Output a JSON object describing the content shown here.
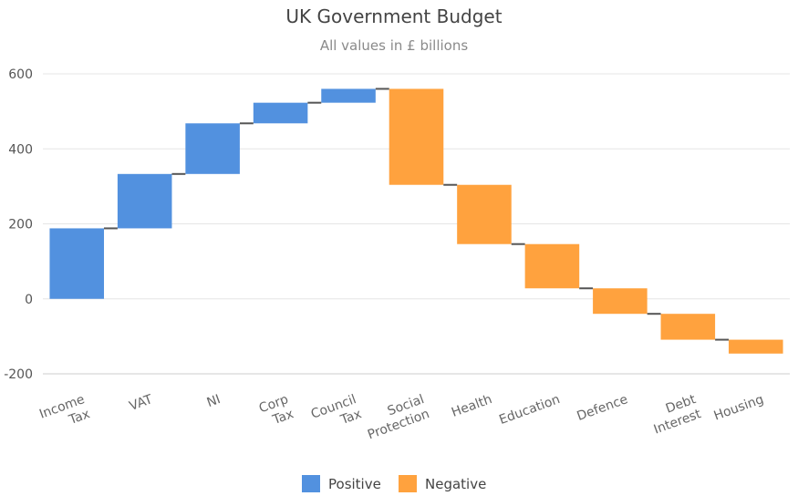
{
  "chart_data": {
    "type": "waterfall",
    "title": "UK Government Budget",
    "subtitle": "All values in £ billions",
    "categories": [
      [
        "Income",
        "Tax"
      ],
      [
        "VAT"
      ],
      [
        "NI"
      ],
      [
        "Corp",
        "Tax"
      ],
      [
        "Council",
        "Tax"
      ],
      [
        "Social",
        "Protection"
      ],
      [
        "Health"
      ],
      [
        "Education"
      ],
      [
        "Defence"
      ],
      [
        "Debt",
        "Interest"
      ],
      [
        "Housing"
      ]
    ],
    "values": [
      188,
      145,
      135,
      55,
      37,
      -256,
      -158,
      -118,
      -68,
      -69,
      -37
    ],
    "ylim": [
      -200,
      600
    ],
    "yticks": [
      "-200",
      "0",
      "200",
      "400",
      "600"
    ],
    "legend": {
      "positive_label": "Positive",
      "negative_label": "Negative"
    },
    "colors": {
      "positive": "#5291DF",
      "negative": "#FFA23E"
    }
  }
}
